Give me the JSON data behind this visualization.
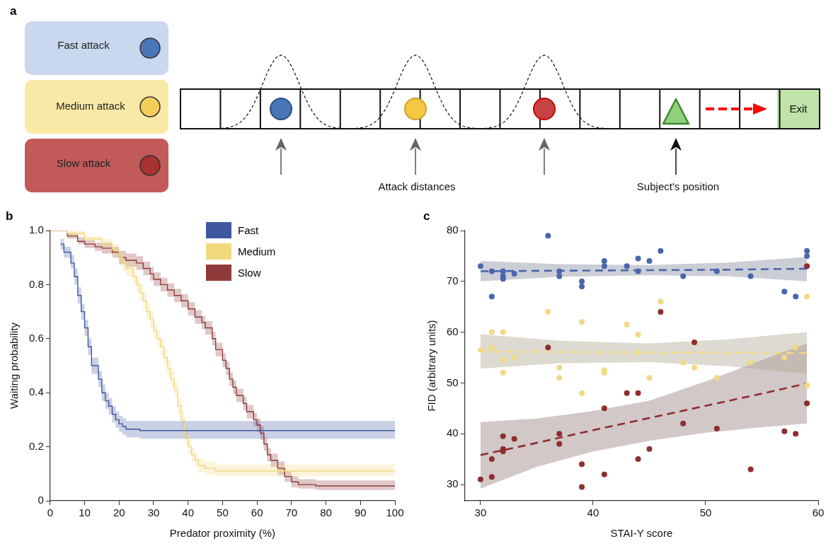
{
  "chart_data": [
    {
      "type": "other",
      "title": "a",
      "annotations": [
        "Fast attack",
        "Medium attack",
        "Slow attack",
        "Attack distances",
        "Subject's position",
        "Exit"
      ]
    },
    {
      "type": "step",
      "title": "b",
      "xlabel": "Predator proximity (%)",
      "ylabel": "Waiting probability",
      "xlim": [
        0,
        100
      ],
      "xticks": [
        0,
        10,
        20,
        30,
        40,
        50,
        60,
        70,
        80,
        90,
        100
      ],
      "ylim": [
        0,
        1
      ],
      "yticks": [
        0,
        0.2,
        0.4,
        0.6,
        0.8,
        {
          "value": 1,
          "label": "1.0"
        }
      ],
      "grid": false,
      "legend": "top",
      "marker": "none",
      "series": [
        {
          "name": "Fast",
          "color": "#3f57a0",
          "x": [
            3,
            4,
            6,
            7,
            8,
            9,
            10,
            11,
            12,
            14,
            15,
            16,
            17,
            18,
            19,
            20,
            21,
            22,
            26,
            100
          ],
          "values": [
            0.95,
            0.92,
            0.88,
            0.83,
            0.76,
            0.7,
            0.64,
            0.57,
            0.5,
            0.45,
            0.4,
            0.37,
            0.35,
            0.32,
            0.3,
            0.285,
            0.275,
            0.265,
            0.26,
            0.26
          ],
          "lower": [
            0.93,
            0.9,
            0.86,
            0.8,
            0.73,
            0.67,
            0.61,
            0.54,
            0.47,
            0.42,
            0.37,
            0.34,
            0.32,
            0.29,
            0.27,
            0.255,
            0.245,
            0.235,
            0.23,
            0.23
          ],
          "upper": [
            0.97,
            0.94,
            0.91,
            0.86,
            0.79,
            0.73,
            0.67,
            0.6,
            0.53,
            0.48,
            0.43,
            0.4,
            0.38,
            0.35,
            0.33,
            0.315,
            0.305,
            0.295,
            0.295,
            0.295
          ]
        },
        {
          "name": "Medium",
          "color": "#f2d97e",
          "x": [
            0,
            5,
            10,
            15,
            18,
            20,
            21,
            22,
            24,
            25,
            26,
            27,
            28,
            29,
            30,
            31,
            32,
            33,
            34,
            35,
            36,
            37,
            38,
            39,
            40,
            41,
            42,
            43,
            45,
            48,
            100
          ],
          "values": [
            1,
            0.99,
            0.97,
            0.95,
            0.93,
            0.9,
            0.88,
            0.86,
            0.83,
            0.8,
            0.77,
            0.74,
            0.7,
            0.67,
            0.63,
            0.6,
            0.57,
            0.53,
            0.49,
            0.45,
            0.41,
            0.35,
            0.3,
            0.24,
            0.2,
            0.17,
            0.15,
            0.13,
            0.12,
            0.11,
            0.11
          ],
          "lower": [
            1,
            0.98,
            0.96,
            0.93,
            0.91,
            0.88,
            0.85,
            0.83,
            0.8,
            0.77,
            0.74,
            0.71,
            0.67,
            0.64,
            0.6,
            0.57,
            0.54,
            0.5,
            0.46,
            0.42,
            0.38,
            0.32,
            0.27,
            0.21,
            0.17,
            0.145,
            0.125,
            0.105,
            0.095,
            0.09,
            0.09
          ],
          "upper": [
            1,
            1,
            0.98,
            0.97,
            0.95,
            0.92,
            0.91,
            0.89,
            0.86,
            0.83,
            0.8,
            0.77,
            0.73,
            0.7,
            0.66,
            0.63,
            0.6,
            0.56,
            0.52,
            0.48,
            0.44,
            0.38,
            0.33,
            0.27,
            0.23,
            0.195,
            0.175,
            0.155,
            0.145,
            0.135,
            0.135
          ]
        },
        {
          "name": "Slow",
          "color": "#8f3a3a",
          "x": [
            0,
            5,
            8,
            10,
            13,
            15,
            18,
            20,
            22,
            25,
            27,
            29,
            30,
            32,
            34,
            36,
            38,
            40,
            42,
            44,
            45,
            47,
            48,
            50,
            51,
            52,
            53,
            54,
            56,
            57,
            59,
            60,
            61,
            62,
            63,
            64,
            66,
            68,
            70,
            72,
            77,
            100
          ],
          "values": [
            1,
            0.98,
            0.96,
            0.95,
            0.94,
            0.935,
            0.92,
            0.9,
            0.89,
            0.88,
            0.86,
            0.84,
            0.82,
            0.8,
            0.78,
            0.76,
            0.74,
            0.71,
            0.68,
            0.66,
            0.64,
            0.6,
            0.56,
            0.52,
            0.49,
            0.45,
            0.42,
            0.39,
            0.36,
            0.33,
            0.3,
            0.28,
            0.25,
            0.21,
            0.17,
            0.15,
            0.12,
            0.09,
            0.07,
            0.06,
            0.055,
            0.055
          ],
          "lower": [
            1,
            0.97,
            0.95,
            0.935,
            0.925,
            0.915,
            0.9,
            0.875,
            0.865,
            0.855,
            0.835,
            0.815,
            0.795,
            0.775,
            0.755,
            0.735,
            0.715,
            0.685,
            0.655,
            0.635,
            0.615,
            0.575,
            0.535,
            0.495,
            0.465,
            0.425,
            0.395,
            0.365,
            0.335,
            0.305,
            0.275,
            0.255,
            0.225,
            0.185,
            0.145,
            0.125,
            0.095,
            0.07,
            0.05,
            0.045,
            0.04,
            0.04
          ],
          "upper": [
            1,
            0.99,
            0.975,
            0.965,
            0.955,
            0.955,
            0.94,
            0.925,
            0.915,
            0.905,
            0.885,
            0.865,
            0.845,
            0.825,
            0.805,
            0.785,
            0.765,
            0.735,
            0.705,
            0.685,
            0.665,
            0.625,
            0.585,
            0.545,
            0.515,
            0.475,
            0.445,
            0.415,
            0.385,
            0.355,
            0.325,
            0.305,
            0.275,
            0.235,
            0.195,
            0.175,
            0.145,
            0.11,
            0.09,
            0.08,
            0.075,
            0.075
          ]
        }
      ]
    },
    {
      "type": "scatter",
      "title": "c",
      "xlabel": "STAI-Y score",
      "ylabel": "FID (arbitrary units)",
      "xlim": [
        28.6,
        60
      ],
      "xticks": [
        30,
        40,
        50,
        60
      ],
      "ylim": [
        26.8,
        80
      ],
      "yticks": [
        30,
        40,
        50,
        60,
        70,
        80
      ],
      "grid": false,
      "marker": "circle",
      "series": [
        {
          "color": "#4a66ad",
          "x": [
            30,
            31,
            31,
            32,
            32,
            32,
            33,
            36,
            37,
            37,
            39,
            39,
            41,
            41,
            43,
            44,
            44,
            45,
            46,
            48,
            51,
            54,
            57,
            58,
            59,
            59
          ],
          "values": [
            73,
            72,
            67,
            72,
            71,
            70.5,
            71.5,
            79,
            72,
            71,
            70,
            69,
            74,
            73,
            73,
            74.5,
            72,
            74,
            76,
            71,
            72,
            71,
            68,
            67,
            76,
            75
          ]
        },
        {
          "color": "#f2d985",
          "x": [
            30,
            31,
            31,
            32,
            32,
            32,
            33,
            36,
            37,
            37,
            39,
            39,
            41,
            41,
            43,
            44,
            44,
            45,
            46,
            48,
            49,
            51,
            54,
            57,
            58,
            59,
            59
          ],
          "values": [
            56.5,
            60,
            57,
            60,
            54.5,
            52,
            55,
            64,
            53,
            51,
            62,
            48,
            52.5,
            52,
            61.5,
            59.5,
            56,
            51,
            66,
            54,
            53,
            51,
            54,
            55,
            57,
            67,
            49.5
          ]
        },
        {
          "color": "#8e2e2e",
          "x": [
            30,
            31,
            31,
            32,
            32,
            32,
            33,
            36,
            37,
            37,
            39,
            39,
            41,
            41,
            43,
            44,
            44,
            45,
            46,
            48,
            49,
            51,
            54,
            57,
            58,
            59,
            59
          ],
          "values": [
            31,
            35,
            31.5,
            39.5,
            37,
            36.5,
            39,
            57,
            40,
            38,
            34,
            29.5,
            45,
            32,
            48,
            48,
            35,
            37,
            64,
            42,
            58,
            41,
            33,
            40.5,
            40,
            73,
            46
          ]
        },
        {
          "type": "line",
          "color": "#4a66ad",
          "marker": "none",
          "line_style": "dashed",
          "x": [
            30,
            37,
            45,
            52,
            59
          ],
          "values": [
            72,
            72.1,
            72.2,
            72.3,
            72.5
          ],
          "lower": [
            70,
            70.9,
            71.2,
            71,
            70
          ],
          "upper": [
            74,
            73.4,
            73.2,
            73.7,
            74.8
          ]
        },
        {
          "type": "line",
          "color": "#f2d985",
          "marker": "none",
          "line_style": "dashed",
          "x": [
            30,
            37,
            45,
            52,
            59
          ],
          "values": [
            56.2,
            56.1,
            56,
            56,
            55.9
          ],
          "lower": [
            52.8,
            53.9,
            54.1,
            53.3,
            51.8
          ],
          "upper": [
            59.6,
            58.3,
            57.8,
            58.6,
            60
          ]
        },
        {
          "type": "line",
          "color": "#8e2e2e",
          "marker": "none",
          "line_style": "dashed",
          "x": [
            30,
            35,
            40,
            45,
            50,
            55,
            59
          ],
          "values": [
            35.8,
            38.2,
            40.7,
            43.1,
            45.5,
            47.9,
            49.9
          ],
          "lower": [
            29.2,
            33.5,
            36.5,
            38.6,
            40.2,
            41.3,
            42
          ],
          "upper": [
            42.3,
            43,
            44.5,
            46.5,
            50.3,
            54.5,
            57.8
          ]
        }
      ]
    }
  ]
}
